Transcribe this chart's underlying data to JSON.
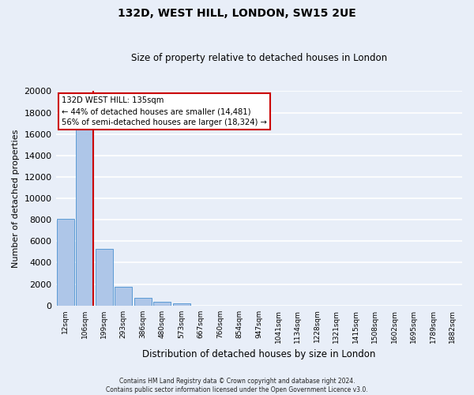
{
  "title": "132D, WEST HILL, LONDON, SW15 2UE",
  "subtitle": "Size of property relative to detached houses in London",
  "xlabel": "Distribution of detached houses by size in London",
  "ylabel": "Number of detached properties",
  "bar_values": [
    8100,
    16500,
    5300,
    1750,
    700,
    320,
    170,
    0,
    0,
    0,
    0,
    0,
    0,
    0,
    0,
    0,
    0,
    0,
    0,
    0,
    0
  ],
  "bar_labels": [
    "12sqm",
    "106sqm",
    "199sqm",
    "293sqm",
    "386sqm",
    "480sqm",
    "573sqm",
    "667sqm",
    "760sqm",
    "854sqm",
    "947sqm",
    "1041sqm",
    "1134sqm",
    "1228sqm",
    "1321sqm",
    "1415sqm",
    "1508sqm",
    "1602sqm",
    "1695sqm",
    "1789sqm",
    "1882sqm"
  ],
  "bar_color": "#aec6e8",
  "bar_edge_color": "#5b9bd5",
  "vline_x_index": 1,
  "vline_color": "#cc0000",
  "ylim": [
    0,
    20000
  ],
  "yticks": [
    0,
    2000,
    4000,
    6000,
    8000,
    10000,
    12000,
    14000,
    16000,
    18000,
    20000
  ],
  "annotation_title": "132D WEST HILL: 135sqm",
  "annotation_line1": "← 44% of detached houses are smaller (14,481)",
  "annotation_line2": "56% of semi-detached houses are larger (18,324) →",
  "annotation_box_color": "white",
  "annotation_box_edge": "#cc0000",
  "footer1": "Contains HM Land Registry data © Crown copyright and database right 2024.",
  "footer2": "Contains public sector information licensed under the Open Government Licence v3.0.",
  "background_color": "#e8eef8",
  "grid_color": "white"
}
